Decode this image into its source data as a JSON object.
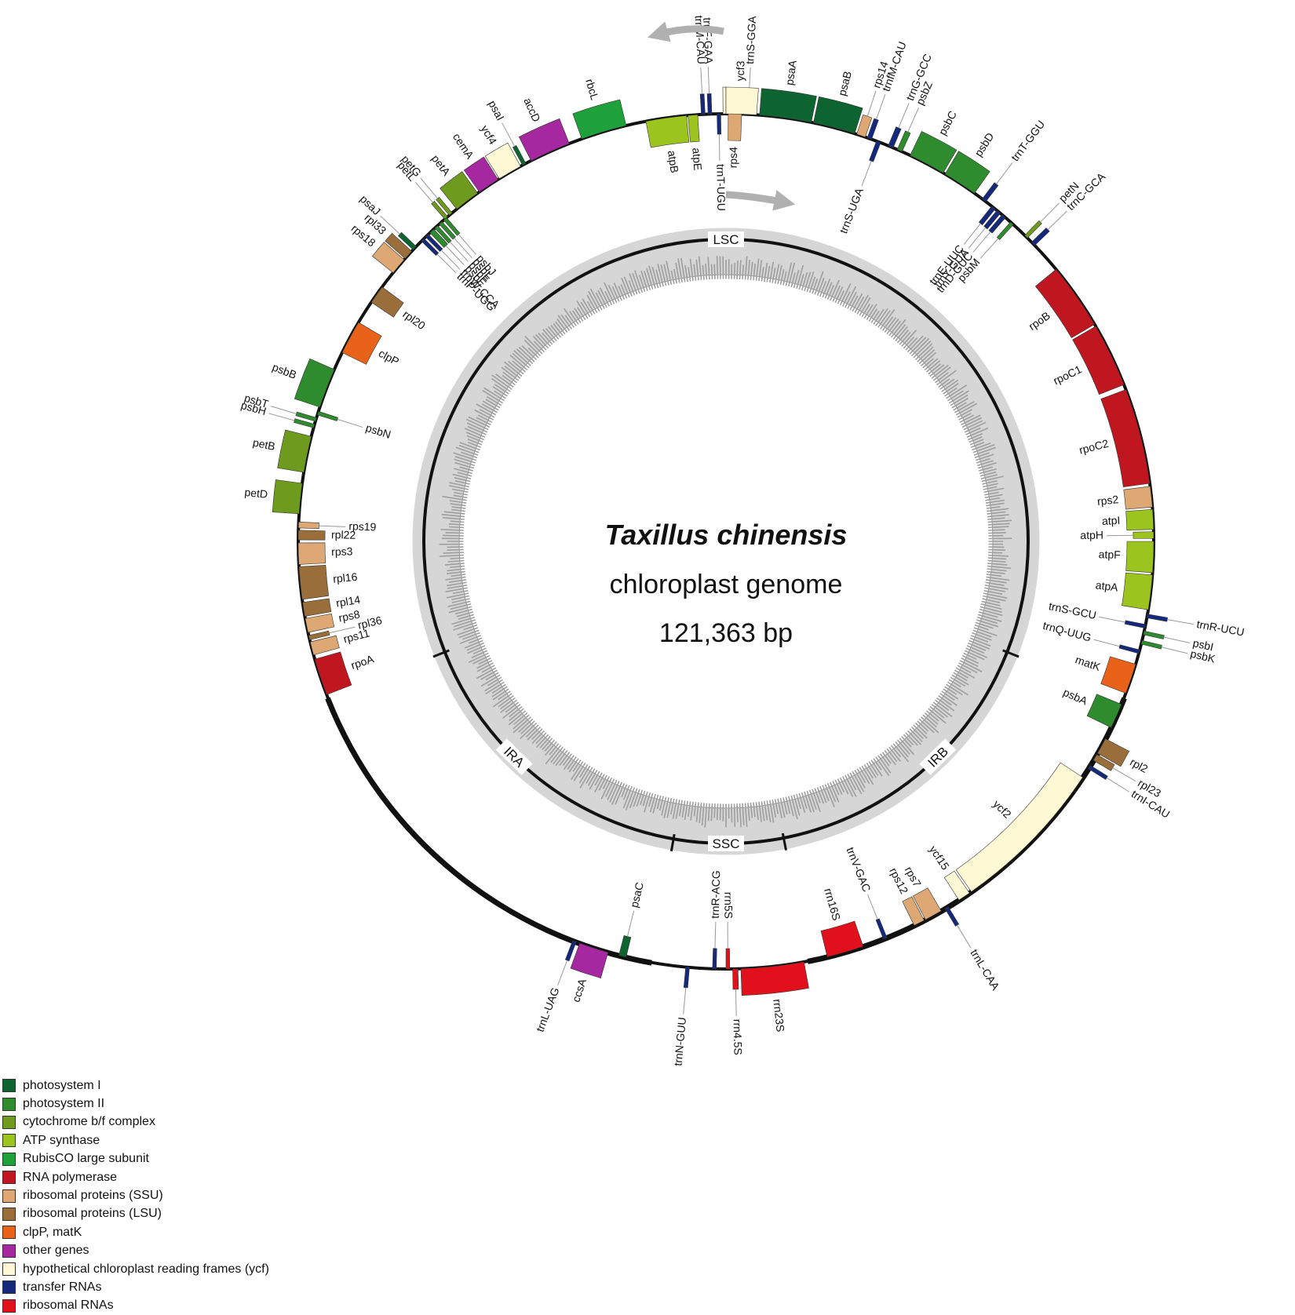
{
  "title": {
    "species": "Taxillus chinensis",
    "subtitle": "chloroplast genome",
    "size": "121,363 bp"
  },
  "regions": [
    "LSC",
    "IRB",
    "SSC",
    "IRA"
  ],
  "colors": {
    "psI": "#0d6431",
    "psII": "#2e8b2e",
    "cyt": "#6e9a1e",
    "atp": "#9cc41e",
    "rbcL": "#1ea13a",
    "rnap": "#c0161f",
    "ssu": "#dea874",
    "lsu": "#9a6e3a",
    "clp": "#e8621a",
    "other": "#a628a0",
    "ycf": "#fff8d4",
    "trna": "#14287c",
    "rrna": "#e0101c"
  },
  "legend": [
    {
      "label": "photosystem I",
      "color": "#0d6431"
    },
    {
      "label": "photosystem II",
      "color": "#2e8b2e"
    },
    {
      "label": "cytochrome b/f complex",
      "color": "#6e9a1e"
    },
    {
      "label": "ATP synthase",
      "color": "#9cc41e"
    },
    {
      "label": "RubisCO large subunit",
      "color": "#1ea13a"
    },
    {
      "label": "RNA polymerase",
      "color": "#c0161f"
    },
    {
      "label": "ribosomal proteins (SSU)",
      "color": "#dea874"
    },
    {
      "label": "ribosomal proteins (LSU)",
      "color": "#9a6e3a"
    },
    {
      "label": "clpP, matK",
      "color": "#e8621a"
    },
    {
      "label": "other genes",
      "color": "#a628a0"
    },
    {
      "label": "hypothetical chloroplast reading frames (ycf)",
      "color": "#fff8d4"
    },
    {
      "label": "transfer RNAs",
      "color": "#14287c"
    },
    {
      "label": "ribosomal RNAs",
      "color": "#e0101c"
    }
  ],
  "genes": [
    {
      "name": "psaA",
      "cat": "psI"
    },
    {
      "name": "psaB",
      "cat": "psI"
    },
    {
      "name": "rps14",
      "cat": "ssu"
    },
    {
      "name": "trnfM-CAU",
      "cat": "trna"
    },
    {
      "name": "trnS-UGA",
      "cat": "trna"
    },
    {
      "name": "trnG-GCC",
      "cat": "trna"
    },
    {
      "name": "psbZ",
      "cat": "psII"
    },
    {
      "name": "psbC",
      "cat": "psII"
    },
    {
      "name": "psbD",
      "cat": "psII"
    },
    {
      "name": "trnT-GGU",
      "cat": "trna"
    },
    {
      "name": "trnE-UUC",
      "cat": "trna"
    },
    {
      "name": "trnY-GUA",
      "cat": "trna"
    },
    {
      "name": "trnD-GUC",
      "cat": "trna"
    },
    {
      "name": "psbM",
      "cat": "psII"
    },
    {
      "name": "petN",
      "cat": "cyt"
    },
    {
      "name": "trnC-GCA",
      "cat": "trna"
    },
    {
      "name": "rpoB",
      "cat": "rnap"
    },
    {
      "name": "rpoC1",
      "cat": "rnap"
    },
    {
      "name": "rpoC2",
      "cat": "rnap"
    },
    {
      "name": "rps2",
      "cat": "ssu"
    },
    {
      "name": "atpI",
      "cat": "atp"
    },
    {
      "name": "atpH",
      "cat": "atp"
    },
    {
      "name": "atpF",
      "cat": "atp"
    },
    {
      "name": "atpA",
      "cat": "atp"
    },
    {
      "name": "trnR-UCU",
      "cat": "trna"
    },
    {
      "name": "trnS-GCU",
      "cat": "trna"
    },
    {
      "name": "psbI",
      "cat": "psII"
    },
    {
      "name": "psbK",
      "cat": "psII"
    },
    {
      "name": "trnQ-UUG",
      "cat": "trna"
    },
    {
      "name": "matK",
      "cat": "clp"
    },
    {
      "name": "psbA",
      "cat": "psII"
    },
    {
      "name": "rpl2",
      "cat": "lsu"
    },
    {
      "name": "rpl23",
      "cat": "lsu"
    },
    {
      "name": "trnI-CAU",
      "cat": "trna"
    },
    {
      "name": "ycf2",
      "cat": "ycf"
    },
    {
      "name": "ycf15",
      "cat": "ycf"
    },
    {
      "name": "trnL-CAA",
      "cat": "trna"
    },
    {
      "name": "rps7",
      "cat": "ssu"
    },
    {
      "name": "rps12",
      "cat": "ssu"
    },
    {
      "name": "trnV-GAC",
      "cat": "trna"
    },
    {
      "name": "rrn16S",
      "cat": "rrna"
    },
    {
      "name": "rrn23S",
      "cat": "rrna"
    },
    {
      "name": "rrn4.5S",
      "cat": "rrna"
    },
    {
      "name": "rrn5S",
      "cat": "rrna"
    },
    {
      "name": "trnR-ACG",
      "cat": "trna"
    },
    {
      "name": "trnN-GUU",
      "cat": "trna"
    },
    {
      "name": "psaC",
      "cat": "psI"
    },
    {
      "name": "ccsA",
      "cat": "other"
    },
    {
      "name": "trnL-UAG",
      "cat": "trna"
    },
    {
      "name": "rpoA",
      "cat": "rnap"
    },
    {
      "name": "rps11",
      "cat": "ssu"
    },
    {
      "name": "rpl36",
      "cat": "lsu"
    },
    {
      "name": "rps8",
      "cat": "ssu"
    },
    {
      "name": "rpl14",
      "cat": "lsu"
    },
    {
      "name": "rpl16",
      "cat": "lsu"
    },
    {
      "name": "rps3",
      "cat": "ssu"
    },
    {
      "name": "rpl22",
      "cat": "lsu"
    },
    {
      "name": "rps19",
      "cat": "ssu"
    },
    {
      "name": "petD",
      "cat": "cyt"
    },
    {
      "name": "petB",
      "cat": "cyt"
    },
    {
      "name": "psbH",
      "cat": "psII"
    },
    {
      "name": "psbT",
      "cat": "psII"
    },
    {
      "name": "psbN",
      "cat": "psII"
    },
    {
      "name": "psbB",
      "cat": "psII"
    },
    {
      "name": "clpP",
      "cat": "clp"
    },
    {
      "name": "rpl20",
      "cat": "lsu"
    },
    {
      "name": "rps18",
      "cat": "ssu"
    },
    {
      "name": "rpl33",
      "cat": "lsu"
    },
    {
      "name": "psaJ",
      "cat": "psI"
    },
    {
      "name": "trnP-UGG",
      "cat": "trna"
    },
    {
      "name": "trnW-CCA",
      "cat": "trna"
    },
    {
      "name": "psbE",
      "cat": "psII"
    },
    {
      "name": "psbF",
      "cat": "psII"
    },
    {
      "name": "psbL",
      "cat": "psII"
    },
    {
      "name": "psbJ",
      "cat": "psII"
    },
    {
      "name": "petL",
      "cat": "cyt"
    },
    {
      "name": "petG",
      "cat": "cyt"
    },
    {
      "name": "petA",
      "cat": "cyt"
    },
    {
      "name": "cemA",
      "cat": "other"
    },
    {
      "name": "ycf4",
      "cat": "ycf"
    },
    {
      "name": "psaI",
      "cat": "psI"
    },
    {
      "name": "accD",
      "cat": "other"
    },
    {
      "name": "rbcL",
      "cat": "rbcL"
    },
    {
      "name": "atpB",
      "cat": "atp"
    },
    {
      "name": "atpE",
      "cat": "atp"
    },
    {
      "name": "trnM-CAU",
      "cat": "trna"
    },
    {
      "name": "trnF-GAA",
      "cat": "trna"
    },
    {
      "name": "trnT-UGU",
      "cat": "trna"
    },
    {
      "name": "rps4",
      "cat": "ssu"
    },
    {
      "name": "trnS-GGA",
      "cat": "trna"
    },
    {
      "name": "ycf3",
      "cat": "ycf"
    }
  ]
}
